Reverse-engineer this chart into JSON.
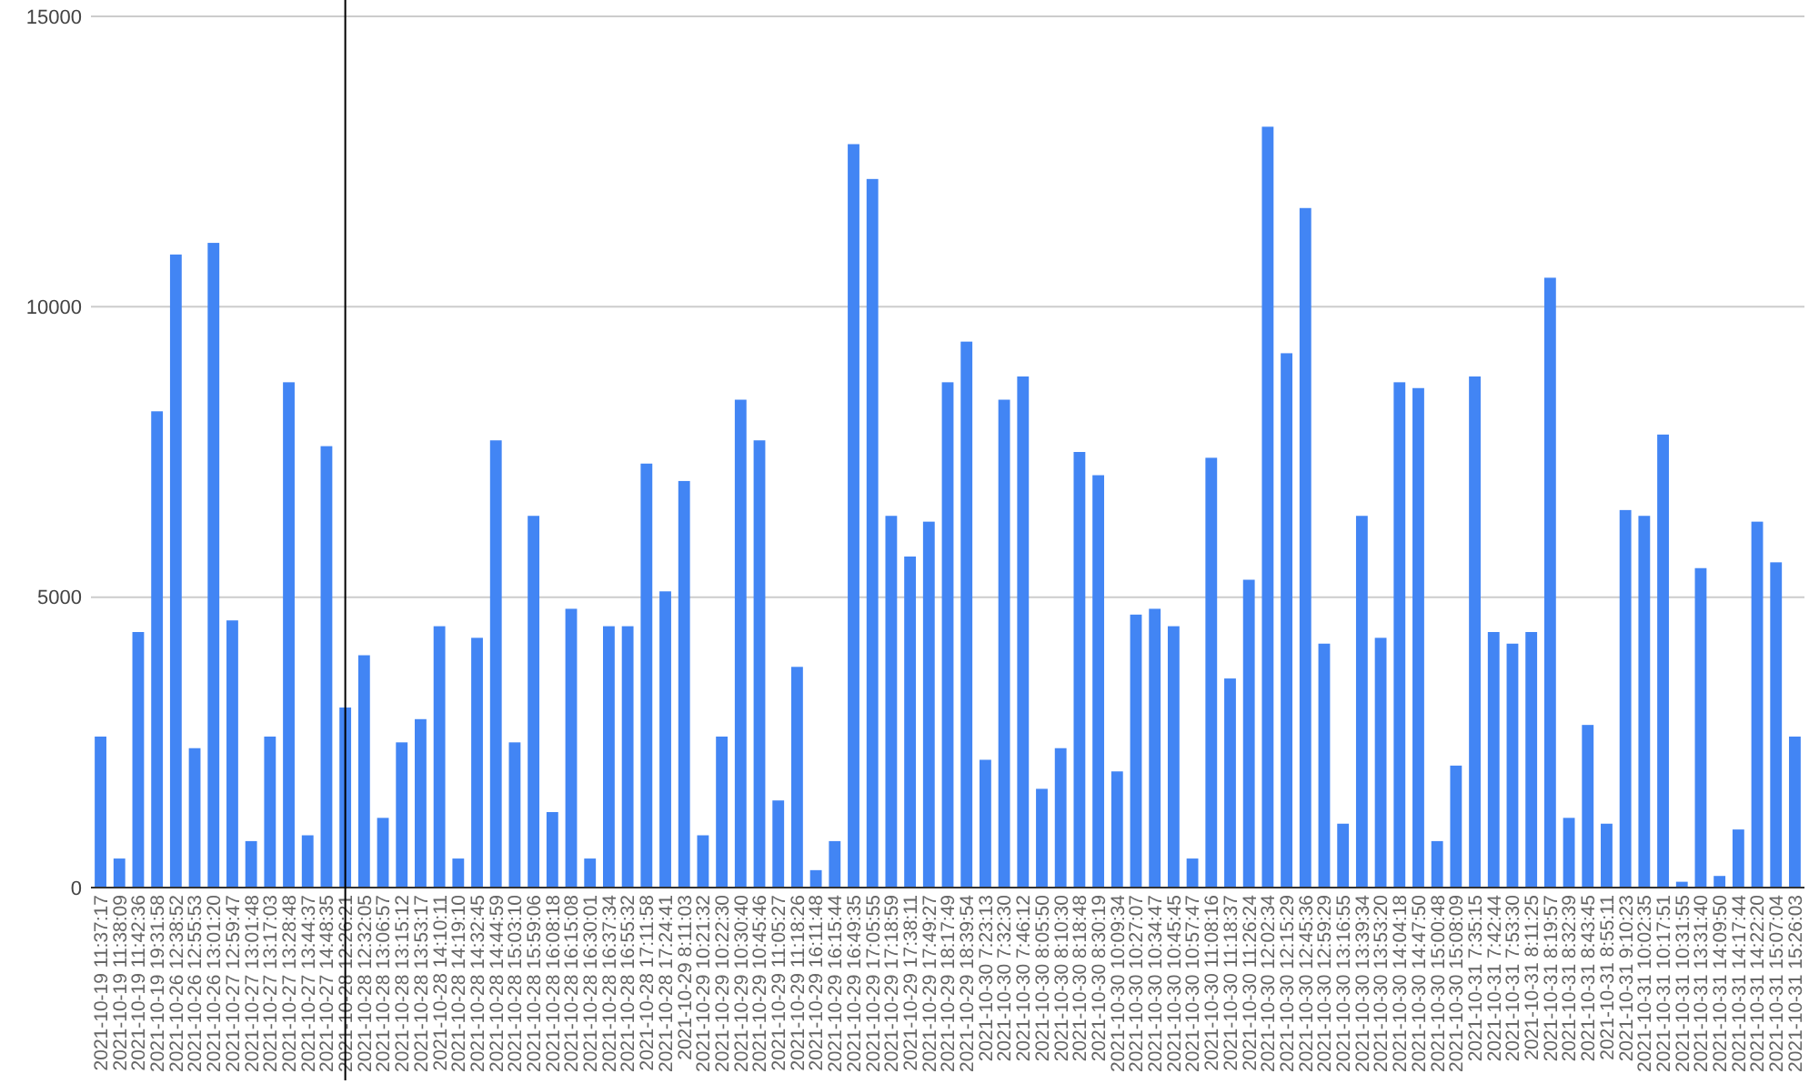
{
  "chart_data": {
    "type": "bar",
    "categories": [
      "2021-10-19 11:37:17",
      "2021-10-19 11:38:09",
      "2021-10-19 11:42:36",
      "2021-10-19 19:31:58",
      "2021-10-26 12:38:52",
      "2021-10-26 12:55:53",
      "2021-10-26 13:01:20",
      "2021-10-27 12:59:47",
      "2021-10-27 13:01:48",
      "2021-10-27 13:17:03",
      "2021-10-27 13:28:48",
      "2021-10-27 13:44:37",
      "2021-10-27 14:48:35",
      "2021-10-28 12:26:21",
      "2021-10-28 12:32:05",
      "2021-10-28 13:06:57",
      "2021-10-28 13:15:12",
      "2021-10-28 13:53:17",
      "2021-10-28 14:10:11",
      "2021-10-28 14:19:10",
      "2021-10-28 14:32:45",
      "2021-10-28 14:44:59",
      "2021-10-28 15:03:10",
      "2021-10-28 15:59:06",
      "2021-10-28 16:08:18",
      "2021-10-28 16:15:08",
      "2021-10-28 16:30:01",
      "2021-10-28 16:37:34",
      "2021-10-28 16:55:32",
      "2021-10-28 17:11:58",
      "2021-10-28 17:24:41",
      "2021-10-29 8:11:03",
      "2021-10-29 10:21:32",
      "2021-10-29 10:22:30",
      "2021-10-29 10:30:40",
      "2021-10-29 10:45:46",
      "2021-10-29 11:05:27",
      "2021-10-29 11:18:26",
      "2021-10-29 16:11:48",
      "2021-10-29 16:15:44",
      "2021-10-29 16:49:35",
      "2021-10-29 17:05:55",
      "2021-10-29 17:18:59",
      "2021-10-29 17:38:11",
      "2021-10-29 17:49:27",
      "2021-10-29 18:17:49",
      "2021-10-29 18:39:54",
      "2021-10-30 7:23:13",
      "2021-10-30 7:32:30",
      "2021-10-30 7:46:12",
      "2021-10-30 8:05:50",
      "2021-10-30 8:10:30",
      "2021-10-30 8:18:48",
      "2021-10-30 8:30:19",
      "2021-10-30 10:09:34",
      "2021-10-30 10:27:07",
      "2021-10-30 10:34:47",
      "2021-10-30 10:45:45",
      "2021-10-30 10:57:47",
      "2021-10-30 11:08:16",
      "2021-10-30 11:18:37",
      "2021-10-30 11:26:24",
      "2021-10-30 12:02:34",
      "2021-10-30 12:15:29",
      "2021-10-30 12:45:36",
      "2021-10-30 12:59:29",
      "2021-10-30 13:16:55",
      "2021-10-30 13:39:34",
      "2021-10-30 13:53:20",
      "2021-10-30 14:04:18",
      "2021-10-30 14:47:50",
      "2021-10-30 15:00:48",
      "2021-10-30 15:08:09",
      "2021-10-31 7:35:15",
      "2021-10-31 7:42:44",
      "2021-10-31 7:53:30",
      "2021-10-31 8:11:25",
      "2021-10-31 8:19:57",
      "2021-10-31 8:32:39",
      "2021-10-31 8:43:45",
      "2021-10-31 8:55:11",
      "2021-10-31 9:10:23",
      "2021-10-31 10:02:35",
      "2021-10-31 10:17:51",
      "2021-10-31 10:31:55",
      "2021-10-31 13:31:40",
      "2021-10-31 14:09:50",
      "2021-10-31 14:17:44",
      "2021-10-31 14:22:20",
      "2021-10-31 15:07:04",
      "2021-10-31 15:26:03"
    ],
    "values": [
      2600,
      500,
      4400,
      8200,
      10900,
      2400,
      11100,
      4600,
      800,
      2600,
      8700,
      900,
      7600,
      3100,
      4000,
      1200,
      2500,
      2900,
      4500,
      500,
      4300,
      7700,
      2500,
      6400,
      1300,
      4800,
      500,
      4500,
      4500,
      7300,
      5100,
      7000,
      900,
      2600,
      8400,
      7700,
      1500,
      3800,
      300,
      800,
      12800,
      12200,
      6400,
      5700,
      6300,
      8700,
      9400,
      2200,
      8400,
      8800,
      1700,
      2400,
      7500,
      7100,
      2000,
      4700,
      4800,
      4500,
      500,
      7400,
      3600,
      5300,
      13100,
      9200,
      11700,
      4200,
      1100,
      6400,
      4300,
      8700,
      8600,
      800,
      2100,
      8800,
      4400,
      4200,
      4400,
      10500,
      1200,
      2800,
      1100,
      6500,
      6400,
      7800,
      100,
      5500,
      200,
      1000,
      6300,
      5600,
      2600
    ],
    "color": "#4285f4",
    "ylim": [
      0,
      15000
    ],
    "yticks": [
      0,
      5000,
      10000,
      15000
    ],
    "grid": "y",
    "ref_lines": [
      {
        "axis": "x",
        "value": "2021-10-28 12:26:21",
        "color": "#000000"
      }
    ]
  }
}
